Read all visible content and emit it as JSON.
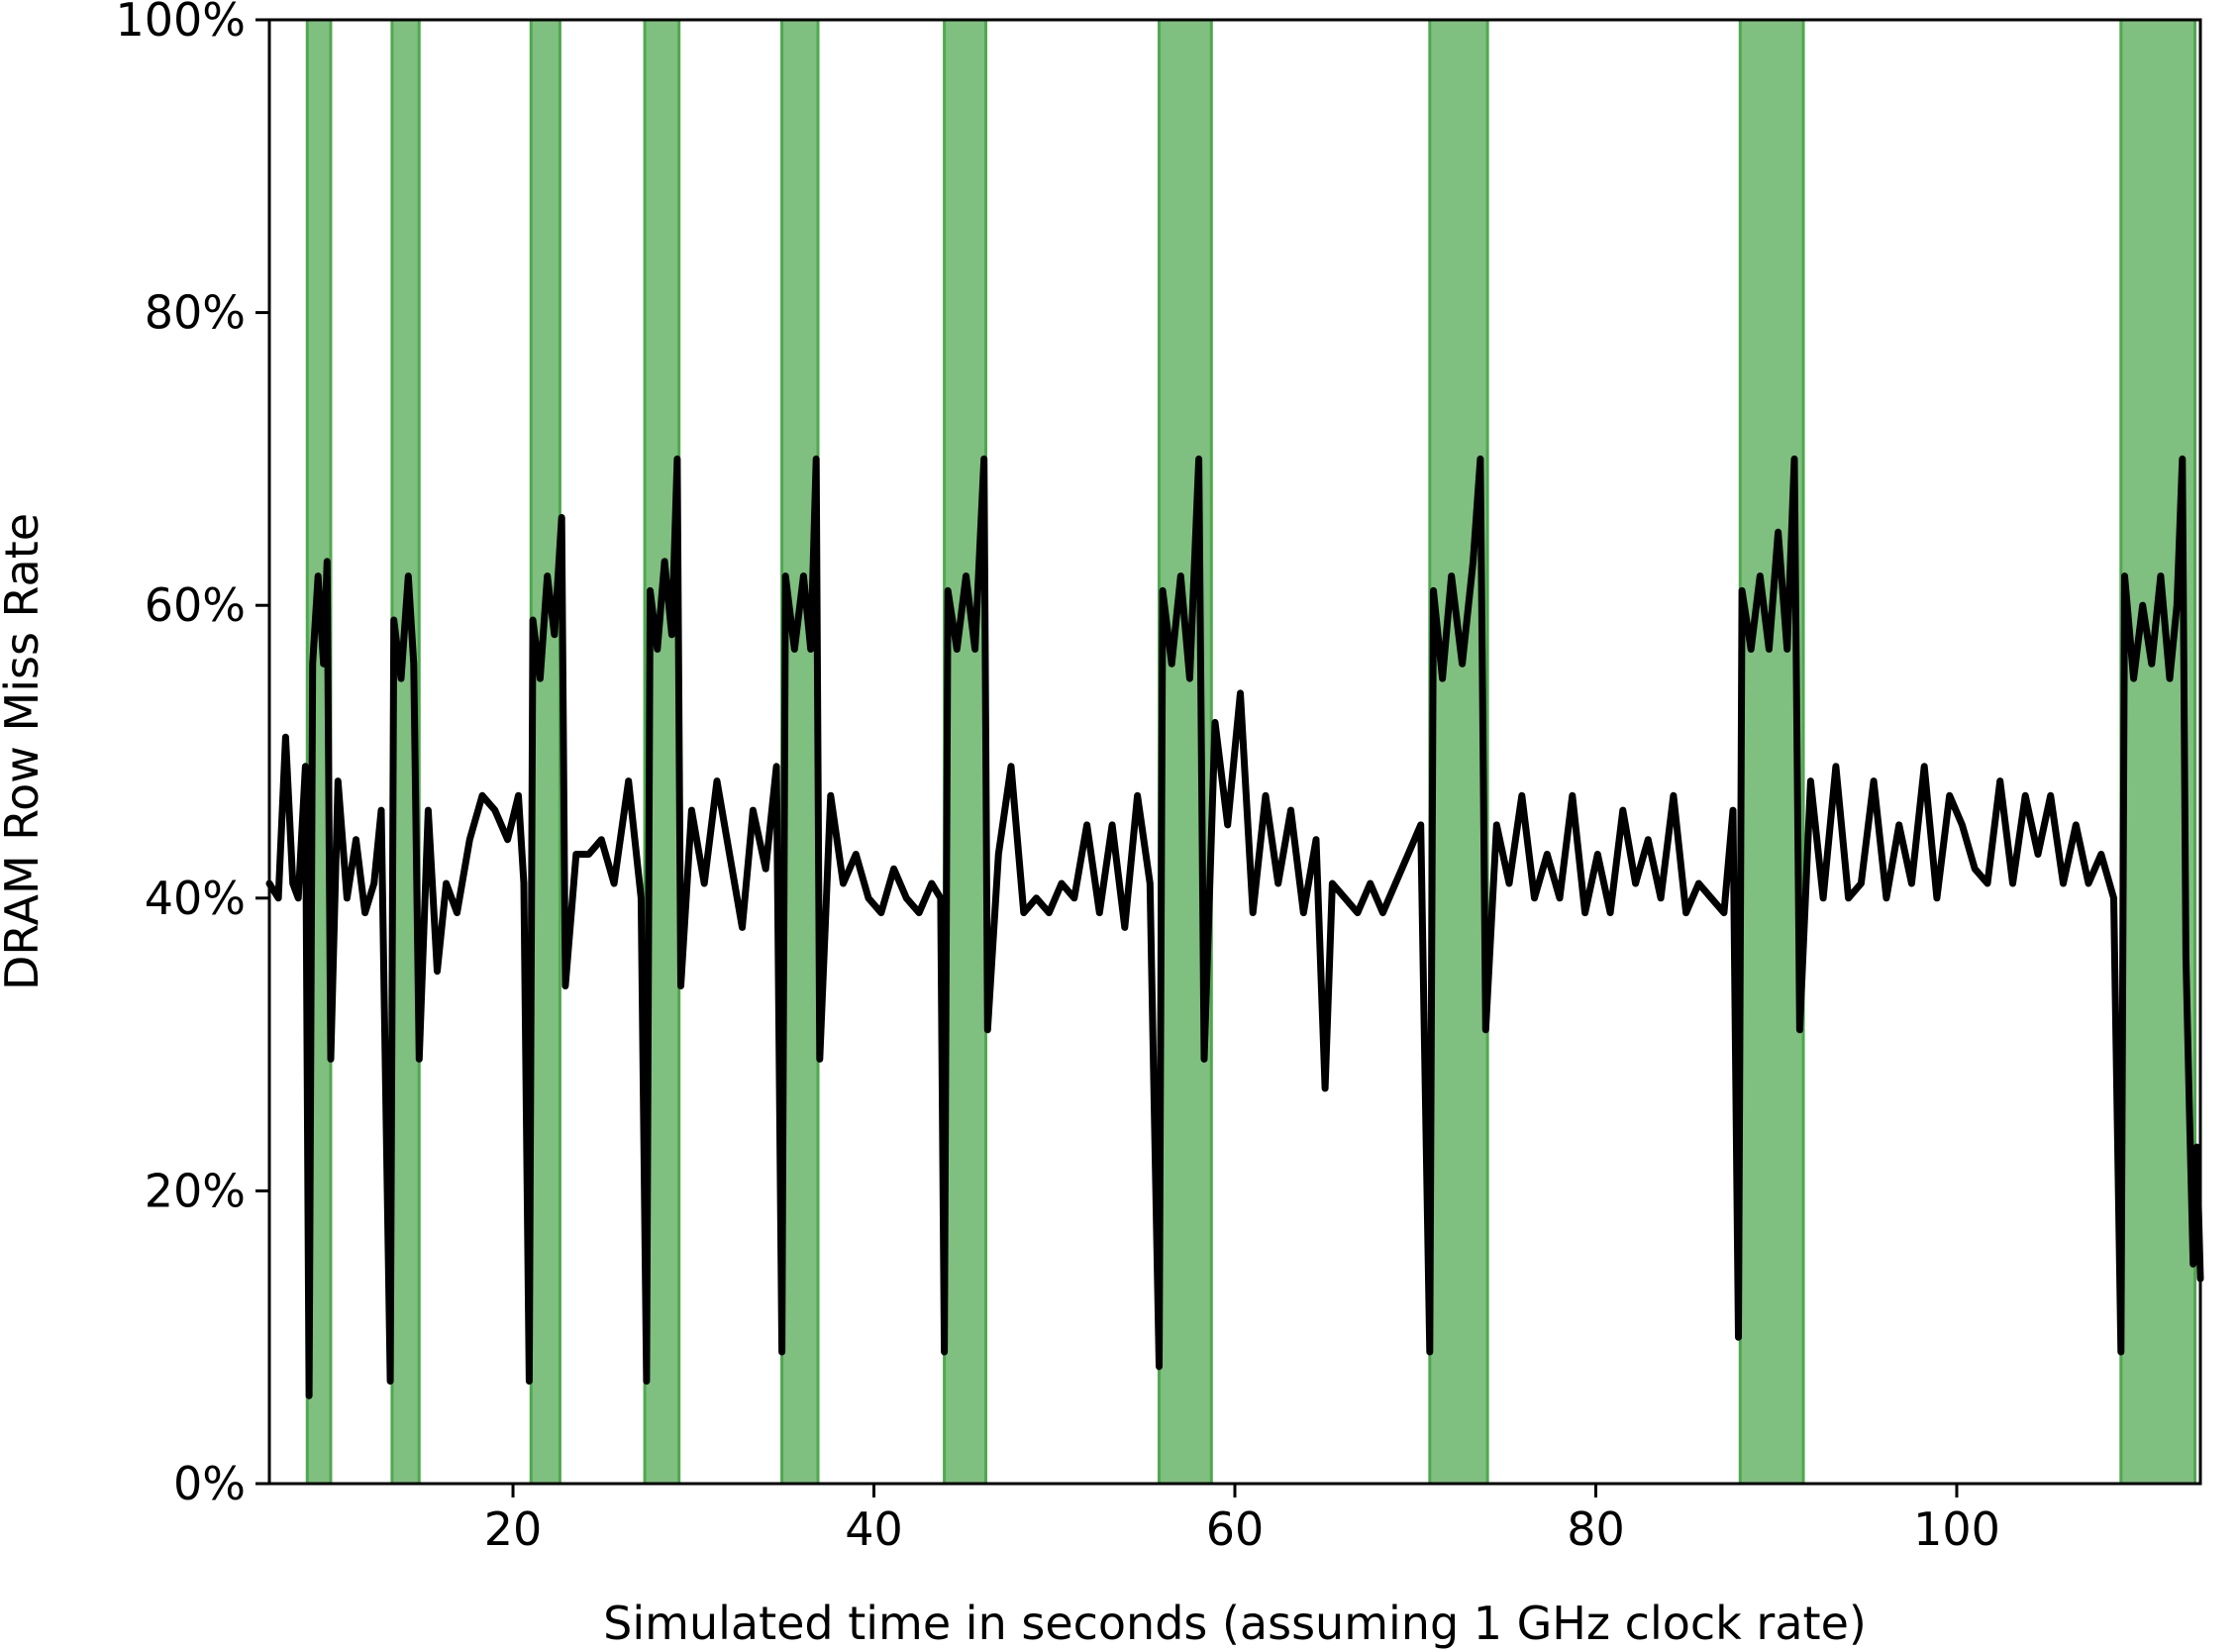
{
  "chart_data": {
    "type": "line",
    "title": "",
    "xlabel": "Simulated time in seconds (assuming 1 GHz clock rate)",
    "ylabel": "DRAM Row Miss Rate",
    "xlim": [
      6.5,
      113.5
    ],
    "ylim": [
      0,
      100
    ],
    "x_ticks": [
      20,
      40,
      60,
      80,
      100
    ],
    "x_tick_labels": [
      "20",
      "40",
      "60",
      "80",
      "100"
    ],
    "y_ticks": [
      0,
      20,
      40,
      60,
      80,
      100
    ],
    "y_tick_labels": [
      "0%",
      "20%",
      "40%",
      "60%",
      "80%",
      "100%"
    ],
    "grid": false,
    "legend": "none",
    "colors": {
      "line": "#000000",
      "band_fill": "#7fbf7f",
      "band_edge": "#4fa84f",
      "axes": "#000000"
    },
    "highlight_bands": [
      [
        8.6,
        9.9
      ],
      [
        13.3,
        14.8
      ],
      [
        21.0,
        22.6
      ],
      [
        27.3,
        29.2
      ],
      [
        34.9,
        36.9
      ],
      [
        43.9,
        46.2
      ],
      [
        55.8,
        58.7
      ],
      [
        70.8,
        74.0
      ],
      [
        88.0,
        91.5
      ],
      [
        109.1,
        113.2
      ]
    ],
    "series": [
      {
        "values": [
          [
            6.5,
            41
          ],
          [
            7.0,
            40
          ],
          [
            7.4,
            51
          ],
          [
            7.8,
            41
          ],
          [
            8.1,
            40
          ],
          [
            8.5,
            49
          ],
          [
            8.7,
            6
          ],
          [
            8.9,
            56
          ],
          [
            9.2,
            62
          ],
          [
            9.5,
            56
          ],
          [
            9.7,
            63
          ],
          [
            9.9,
            29
          ],
          [
            10.3,
            48
          ],
          [
            10.8,
            40
          ],
          [
            11.3,
            44
          ],
          [
            11.8,
            39
          ],
          [
            12.3,
            41
          ],
          [
            12.7,
            46
          ],
          [
            13.2,
            7
          ],
          [
            13.4,
            59
          ],
          [
            13.8,
            55
          ],
          [
            14.2,
            62
          ],
          [
            14.5,
            56
          ],
          [
            14.8,
            29
          ],
          [
            15.3,
            46
          ],
          [
            15.8,
            35
          ],
          [
            16.3,
            41
          ],
          [
            16.9,
            39
          ],
          [
            17.6,
            44
          ],
          [
            18.3,
            47
          ],
          [
            19.0,
            46
          ],
          [
            19.7,
            44
          ],
          [
            20.3,
            47
          ],
          [
            20.6,
            41
          ],
          [
            20.9,
            7
          ],
          [
            21.1,
            59
          ],
          [
            21.5,
            55
          ],
          [
            21.9,
            62
          ],
          [
            22.3,
            58
          ],
          [
            22.7,
            66
          ],
          [
            22.9,
            34
          ],
          [
            23.5,
            43
          ],
          [
            24.2,
            43
          ],
          [
            24.9,
            44
          ],
          [
            25.6,
            41
          ],
          [
            26.4,
            48
          ],
          [
            27.1,
            40
          ],
          [
            27.4,
            7
          ],
          [
            27.6,
            61
          ],
          [
            28.0,
            57
          ],
          [
            28.4,
            63
          ],
          [
            28.8,
            58
          ],
          [
            29.1,
            70
          ],
          [
            29.3,
            34
          ],
          [
            29.9,
            46
          ],
          [
            30.6,
            41
          ],
          [
            31.3,
            48
          ],
          [
            32.0,
            43
          ],
          [
            32.7,
            38
          ],
          [
            33.3,
            46
          ],
          [
            34.0,
            42
          ],
          [
            34.6,
            49
          ],
          [
            34.9,
            9
          ],
          [
            35.1,
            62
          ],
          [
            35.6,
            57
          ],
          [
            36.1,
            62
          ],
          [
            36.5,
            57
          ],
          [
            36.8,
            70
          ],
          [
            37.0,
            29
          ],
          [
            37.6,
            47
          ],
          [
            38.3,
            41
          ],
          [
            39.0,
            43
          ],
          [
            39.7,
            40
          ],
          [
            40.4,
            39
          ],
          [
            41.1,
            42
          ],
          [
            41.8,
            40
          ],
          [
            42.5,
            39
          ],
          [
            43.2,
            41
          ],
          [
            43.7,
            40
          ],
          [
            43.9,
            9
          ],
          [
            44.1,
            61
          ],
          [
            44.6,
            57
          ],
          [
            45.1,
            62
          ],
          [
            45.6,
            57
          ],
          [
            46.1,
            70
          ],
          [
            46.3,
            31
          ],
          [
            46.9,
            43
          ],
          [
            47.6,
            49
          ],
          [
            48.3,
            39
          ],
          [
            49.0,
            40
          ],
          [
            49.7,
            39
          ],
          [
            50.4,
            41
          ],
          [
            51.1,
            40
          ],
          [
            51.8,
            45
          ],
          [
            52.5,
            39
          ],
          [
            53.2,
            45
          ],
          [
            53.9,
            38
          ],
          [
            54.6,
            47
          ],
          [
            55.3,
            41
          ],
          [
            55.8,
            8
          ],
          [
            56.0,
            61
          ],
          [
            56.5,
            56
          ],
          [
            57.0,
            62
          ],
          [
            57.5,
            55
          ],
          [
            58.0,
            70
          ],
          [
            58.3,
            29
          ],
          [
            58.9,
            52
          ],
          [
            59.6,
            45
          ],
          [
            60.3,
            54
          ],
          [
            61.0,
            39
          ],
          [
            61.7,
            47
          ],
          [
            62.4,
            41
          ],
          [
            63.1,
            46
          ],
          [
            63.8,
            39
          ],
          [
            64.5,
            44
          ],
          [
            65.0,
            27
          ],
          [
            65.4,
            41
          ],
          [
            66.1,
            40
          ],
          [
            66.8,
            39
          ],
          [
            67.5,
            41
          ],
          [
            68.2,
            39
          ],
          [
            68.9,
            41
          ],
          [
            69.6,
            43
          ],
          [
            70.3,
            45
          ],
          [
            70.8,
            9
          ],
          [
            71.0,
            61
          ],
          [
            71.5,
            55
          ],
          [
            72.0,
            62
          ],
          [
            72.6,
            56
          ],
          [
            73.2,
            63
          ],
          [
            73.6,
            70
          ],
          [
            73.9,
            31
          ],
          [
            74.5,
            45
          ],
          [
            75.2,
            41
          ],
          [
            75.9,
            47
          ],
          [
            76.6,
            40
          ],
          [
            77.3,
            43
          ],
          [
            78.0,
            40
          ],
          [
            78.7,
            47
          ],
          [
            79.4,
            39
          ],
          [
            80.1,
            43
          ],
          [
            80.8,
            39
          ],
          [
            81.5,
            46
          ],
          [
            82.2,
            41
          ],
          [
            82.9,
            44
          ],
          [
            83.6,
            40
          ],
          [
            84.3,
            47
          ],
          [
            85.0,
            39
          ],
          [
            85.7,
            41
          ],
          [
            86.4,
            40
          ],
          [
            87.1,
            39
          ],
          [
            87.6,
            46
          ],
          [
            87.9,
            10
          ],
          [
            88.1,
            61
          ],
          [
            88.6,
            57
          ],
          [
            89.1,
            62
          ],
          [
            89.6,
            57
          ],
          [
            90.1,
            65
          ],
          [
            90.6,
            57
          ],
          [
            91.0,
            70
          ],
          [
            91.3,
            31
          ],
          [
            91.9,
            48
          ],
          [
            92.6,
            40
          ],
          [
            93.3,
            49
          ],
          [
            94.0,
            40
          ],
          [
            94.7,
            41
          ],
          [
            95.4,
            48
          ],
          [
            96.1,
            40
          ],
          [
            96.8,
            45
          ],
          [
            97.5,
            41
          ],
          [
            98.2,
            49
          ],
          [
            98.9,
            40
          ],
          [
            99.6,
            47
          ],
          [
            100.3,
            45
          ],
          [
            101.0,
            42
          ],
          [
            101.7,
            41
          ],
          [
            102.4,
            48
          ],
          [
            103.1,
            41
          ],
          [
            103.8,
            47
          ],
          [
            104.5,
            43
          ],
          [
            105.2,
            47
          ],
          [
            105.9,
            41
          ],
          [
            106.6,
            45
          ],
          [
            107.3,
            41
          ],
          [
            108.0,
            43
          ],
          [
            108.7,
            40
          ],
          [
            109.1,
            9
          ],
          [
            109.3,
            62
          ],
          [
            109.8,
            55
          ],
          [
            110.3,
            60
          ],
          [
            110.8,
            56
          ],
          [
            111.3,
            62
          ],
          [
            111.8,
            55
          ],
          [
            112.2,
            60
          ],
          [
            112.5,
            70
          ],
          [
            112.7,
            36
          ],
          [
            112.9,
            25
          ],
          [
            113.1,
            15
          ],
          [
            113.3,
            23
          ],
          [
            113.5,
            14
          ]
        ]
      }
    ]
  }
}
